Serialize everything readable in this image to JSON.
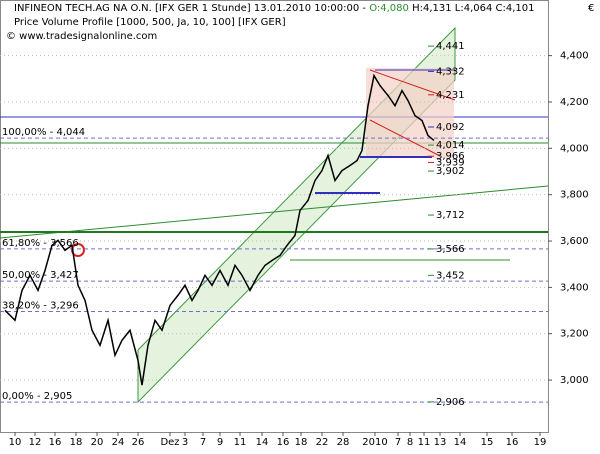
{
  "chart_data": {
    "type": "line",
    "title": "INFINEON TECH.AG NA O.N. [IFX GER  1 Stunde] 13.01.2010 10:00:00 -",
    "quote": [
      "O:4,080",
      "H:4,131 L:4,064 C:4,101"
    ],
    "subtitle": "Price Volume Profile [1000, 500, Ja, 10, 100] [IFX GER]",
    "watermark": "© www.tradesignalonline.com",
    "currency": "€",
    "color": "#000000",
    "x": [
      2,
      12,
      19,
      27,
      35,
      42,
      49,
      55,
      62,
      69,
      75,
      82,
      89,
      97,
      105,
      112,
      119,
      127,
      135,
      139,
      145,
      152,
      159,
      167,
      175,
      182,
      189,
      195,
      202,
      209,
      217,
      225,
      232,
      239,
      247,
      255,
      262,
      269,
      277,
      284,
      292,
      297,
      305,
      312,
      319,
      325,
      332,
      339,
      347,
      354,
      359,
      365,
      371,
      377,
      385,
      392,
      399,
      405,
      412,
      419,
      425,
      431
    ],
    "values": [
      3.301,
      3.258,
      3.387,
      3.452,
      3.387,
      3.473,
      3.581,
      3.603,
      3.56,
      3.581,
      3.409,
      3.344,
      3.215,
      3.15,
      3.258,
      3.107,
      3.172,
      3.215,
      3.085,
      2.978,
      3.15,
      3.258,
      3.215,
      3.322,
      3.366,
      3.409,
      3.344,
      3.387,
      3.452,
      3.409,
      3.473,
      3.409,
      3.495,
      3.452,
      3.387,
      3.452,
      3.495,
      3.516,
      3.538,
      3.581,
      3.624,
      3.732,
      3.775,
      3.861,
      3.904,
      3.969,
      3.861,
      3.904,
      3.926,
      3.947,
      3.991,
      4.184,
      4.314,
      4.271,
      4.228,
      4.184,
      4.249,
      4.206,
      4.141,
      4.12,
      4.055,
      4.034
    ],
    "xlim": [
      0,
      545
    ],
    "xticks": [
      {
        "value": 12,
        "label": "10"
      },
      {
        "value": 32,
        "label": "12"
      },
      {
        "value": 52,
        "label": "16"
      },
      {
        "value": 73,
        "label": "18"
      },
      {
        "value": 94,
        "label": "20"
      },
      {
        "value": 115,
        "label": "24"
      },
      {
        "value": 135,
        "label": "26"
      },
      {
        "value": 167,
        "label": "Dez"
      },
      {
        "value": 182,
        "label": "3"
      },
      {
        "value": 200,
        "label": "7"
      },
      {
        "value": 217,
        "label": "9"
      },
      {
        "value": 237,
        "label": "11"
      },
      {
        "value": 259,
        "label": "14"
      },
      {
        "value": 280,
        "label": "16"
      },
      {
        "value": 298,
        "label": "18"
      },
      {
        "value": 319,
        "label": "22"
      },
      {
        "value": 340,
        "label": "28"
      },
      {
        "value": 372,
        "label": "2010"
      },
      {
        "value": 395,
        "label": "7"
      },
      {
        "value": 407,
        "label": "8"
      },
      {
        "value": 421,
        "label": "11"
      },
      {
        "value": 437,
        "label": "13"
      },
      {
        "value": 457,
        "label": "14"
      },
      {
        "value": 484,
        "label": "15"
      },
      {
        "value": 509,
        "label": "16"
      },
      {
        "value": 537,
        "label": "19"
      }
    ],
    "ylim": [
      2.776,
      4.64
    ],
    "yticks": [
      {
        "value": 3.0,
        "label": "3,000"
      },
      {
        "value": 3.2,
        "label": "3,200"
      },
      {
        "value": 3.4,
        "label": "3,400"
      },
      {
        "value": 3.6,
        "label": "3,600"
      },
      {
        "value": 3.8,
        "label": "3,800"
      },
      {
        "value": 4.0,
        "label": "4,000"
      },
      {
        "value": 4.2,
        "label": "4,200"
      },
      {
        "value": 4.4,
        "label": "4,400"
      }
    ],
    "grid": true,
    "fib_levels": [
      {
        "value": 4.044,
        "label": "100,00% - 4,044"
      },
      {
        "value": 3.566,
        "label": "61,80% - 3,566"
      },
      {
        "value": 3.427,
        "label": "50,00% - 3,427"
      },
      {
        "value": 3.296,
        "label": "38,20% - 3,296"
      },
      {
        "value": 2.905,
        "label": "0,00% - 2,905"
      }
    ],
    "fib_color": "#6f6fd0",
    "levels": [
      {
        "value": 4.441,
        "label": "4,441",
        "color": "#2e8b2e"
      },
      {
        "value": 4.332,
        "label": "4,332",
        "color": "#3030c0"
      },
      {
        "value": 4.231,
        "label": "4,231",
        "color": "#d02020"
      },
      {
        "value": 4.092,
        "label": "4,092",
        "color": "#3030c0"
      },
      {
        "value": 4.014,
        "label": "4,014",
        "color": "#2e8b2e"
      },
      {
        "value": 3.966,
        "label": "3,966",
        "color": "#d02020"
      },
      {
        "value": 3.939,
        "label": "3,939",
        "color": "#d02020"
      },
      {
        "value": 3.902,
        "label": "3,902",
        "color": "#2e8b2e"
      },
      {
        "value": 3.712,
        "label": "3,712",
        "color": "#2e8b2e"
      },
      {
        "value": 3.566,
        "label": "3,566",
        "color": "#2e8b2e"
      },
      {
        "value": 3.452,
        "label": "3,452",
        "color": "#2e8b2e"
      },
      {
        "value": 2.906,
        "label": "2,906",
        "color": "#2e8b2e"
      }
    ]
  }
}
